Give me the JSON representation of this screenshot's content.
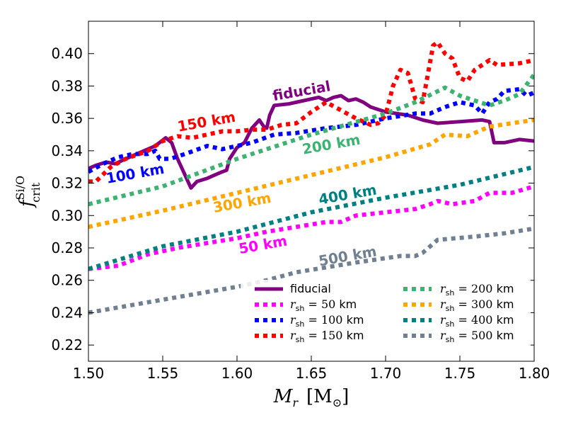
{
  "chart_data": {
    "type": "line",
    "xlabel": "M",
    "xlabel_sub": "r",
    "xlabel_unit": "[M",
    "xlabel_unit_sub": "⊙",
    "xlabel_unit_close": "]",
    "ylabel": "f",
    "ylabel_sup": "Si/O",
    "ylabel_sub": "crit",
    "xlim": [
      1.5,
      1.8
    ],
    "ylim": [
      0.21,
      0.42
    ],
    "xticks": [
      1.5,
      1.55,
      1.6,
      1.65,
      1.7,
      1.75,
      1.8
    ],
    "xtick_labels": [
      "1.50",
      "1.55",
      "1.60",
      "1.65",
      "1.70",
      "1.75",
      "1.80"
    ],
    "yticks": [
      0.22,
      0.24,
      0.26,
      0.28,
      0.3,
      0.32,
      0.34,
      0.36,
      0.38,
      0.4
    ],
    "ytick_labels": [
      "0.22",
      "0.24",
      "0.26",
      "0.28",
      "0.30",
      "0.32",
      "0.34",
      "0.36",
      "0.38",
      "0.40"
    ],
    "series": [
      {
        "name": "fiducial",
        "label": "fiducial",
        "color": "#800080",
        "style": "solid",
        "points": [
          [
            1.5,
            0.329
          ],
          [
            1.505,
            0.331
          ],
          [
            1.512,
            0.333
          ],
          [
            1.518,
            0.332
          ],
          [
            1.525,
            0.335
          ],
          [
            1.535,
            0.339
          ],
          [
            1.545,
            0.343
          ],
          [
            1.552,
            0.348
          ],
          [
            1.556,
            0.345
          ],
          [
            1.56,
            0.335
          ],
          [
            1.565,
            0.325
          ],
          [
            1.569,
            0.317
          ],
          [
            1.573,
            0.321
          ],
          [
            1.58,
            0.323
          ],
          [
            1.585,
            0.325
          ],
          [
            1.59,
            0.327
          ],
          [
            1.593,
            0.328
          ],
          [
            1.595,
            0.335
          ],
          [
            1.6,
            0.342
          ],
          [
            1.605,
            0.345
          ],
          [
            1.61,
            0.354
          ],
          [
            1.615,
            0.359
          ],
          [
            1.618,
            0.355
          ],
          [
            1.62,
            0.354
          ],
          [
            1.622,
            0.362
          ],
          [
            1.625,
            0.368
          ],
          [
            1.635,
            0.369
          ],
          [
            1.645,
            0.371
          ],
          [
            1.655,
            0.373
          ],
          [
            1.66,
            0.371
          ],
          [
            1.665,
            0.373
          ],
          [
            1.67,
            0.374
          ],
          [
            1.675,
            0.371
          ],
          [
            1.68,
            0.372
          ],
          [
            1.685,
            0.37
          ],
          [
            1.69,
            0.367
          ],
          [
            1.7,
            0.364
          ],
          [
            1.715,
            0.362
          ],
          [
            1.725,
            0.359
          ],
          [
            1.735,
            0.357
          ],
          [
            1.75,
            0.358
          ],
          [
            1.765,
            0.359
          ],
          [
            1.77,
            0.358
          ],
          [
            1.773,
            0.345
          ],
          [
            1.78,
            0.345
          ],
          [
            1.79,
            0.347
          ],
          [
            1.8,
            0.346
          ]
        ]
      },
      {
        "name": "rsh-50",
        "label": "r_sh = 50 km",
        "color": "#ff00ff",
        "style": "dotted",
        "points": [
          [
            1.5,
            0.267
          ],
          [
            1.52,
            0.269
          ],
          [
            1.54,
            0.276
          ],
          [
            1.56,
            0.28
          ],
          [
            1.58,
            0.283
          ],
          [
            1.6,
            0.286
          ],
          [
            1.62,
            0.29
          ],
          [
            1.64,
            0.293
          ],
          [
            1.66,
            0.296
          ],
          [
            1.67,
            0.296
          ],
          [
            1.68,
            0.3
          ],
          [
            1.7,
            0.302
          ],
          [
            1.72,
            0.304
          ],
          [
            1.73,
            0.307
          ],
          [
            1.735,
            0.309
          ],
          [
            1.745,
            0.307
          ],
          [
            1.76,
            0.309
          ],
          [
            1.77,
            0.314
          ],
          [
            1.775,
            0.314
          ],
          [
            1.785,
            0.314
          ],
          [
            1.8,
            0.318
          ]
        ]
      },
      {
        "name": "rsh-100",
        "label": "r_sh = 100 km",
        "color": "#0000ff",
        "style": "dotted",
        "points": [
          [
            1.5,
            0.327
          ],
          [
            1.51,
            0.332
          ],
          [
            1.52,
            0.336
          ],
          [
            1.53,
            0.338
          ],
          [
            1.54,
            0.338
          ],
          [
            1.545,
            0.34
          ],
          [
            1.548,
            0.335
          ],
          [
            1.555,
            0.335
          ],
          [
            1.565,
            0.338
          ],
          [
            1.58,
            0.343
          ],
          [
            1.59,
            0.341
          ],
          [
            1.6,
            0.343
          ],
          [
            1.61,
            0.345
          ],
          [
            1.625,
            0.35
          ],
          [
            1.64,
            0.351
          ],
          [
            1.66,
            0.354
          ],
          [
            1.68,
            0.356
          ],
          [
            1.7,
            0.36
          ],
          [
            1.72,
            0.363
          ],
          [
            1.73,
            0.363
          ],
          [
            1.74,
            0.367
          ],
          [
            1.75,
            0.37
          ],
          [
            1.76,
            0.368
          ],
          [
            1.765,
            0.363
          ],
          [
            1.77,
            0.37
          ],
          [
            1.775,
            0.372
          ],
          [
            1.78,
            0.377
          ],
          [
            1.79,
            0.378
          ],
          [
            1.795,
            0.374
          ],
          [
            1.8,
            0.376
          ]
        ]
      },
      {
        "name": "rsh-150",
        "label": "r_sh = 150 km",
        "color": "#ff0000",
        "style": "dotted",
        "points": [
          [
            1.5,
            0.321
          ],
          [
            1.505,
            0.321
          ],
          [
            1.515,
            0.33
          ],
          [
            1.525,
            0.335
          ],
          [
            1.54,
            0.34
          ],
          [
            1.55,
            0.346
          ],
          [
            1.56,
            0.349
          ],
          [
            1.57,
            0.348
          ],
          [
            1.58,
            0.35
          ],
          [
            1.59,
            0.352
          ],
          [
            1.6,
            0.352
          ],
          [
            1.61,
            0.353
          ],
          [
            1.62,
            0.353
          ],
          [
            1.63,
            0.356
          ],
          [
            1.64,
            0.357
          ],
          [
            1.65,
            0.364
          ],
          [
            1.66,
            0.37
          ],
          [
            1.67,
            0.365
          ],
          [
            1.68,
            0.36
          ],
          [
            1.69,
            0.356
          ],
          [
            1.695,
            0.357
          ],
          [
            1.7,
            0.362
          ],
          [
            1.705,
            0.38
          ],
          [
            1.71,
            0.39
          ],
          [
            1.715,
            0.388
          ],
          [
            1.72,
            0.372
          ],
          [
            1.725,
            0.37
          ],
          [
            1.728,
            0.385
          ],
          [
            1.732,
            0.405
          ],
          [
            1.735,
            0.407
          ],
          [
            1.74,
            0.4
          ],
          [
            1.745,
            0.397
          ],
          [
            1.75,
            0.385
          ],
          [
            1.755,
            0.383
          ],
          [
            1.76,
            0.39
          ],
          [
            1.765,
            0.393
          ],
          [
            1.77,
            0.396
          ],
          [
            1.775,
            0.393
          ],
          [
            1.79,
            0.394
          ],
          [
            1.8,
            0.396
          ]
        ]
      },
      {
        "name": "rsh-200",
        "label": "r_sh = 200 km",
        "color": "#3cb371",
        "style": "dotted",
        "points": [
          [
            1.5,
            0.307
          ],
          [
            1.55,
            0.318
          ],
          [
            1.6,
            0.335
          ],
          [
            1.65,
            0.35
          ],
          [
            1.7,
            0.363
          ],
          [
            1.72,
            0.37
          ],
          [
            1.74,
            0.379
          ],
          [
            1.75,
            0.374
          ],
          [
            1.76,
            0.371
          ],
          [
            1.77,
            0.368
          ],
          [
            1.78,
            0.371
          ],
          [
            1.79,
            0.375
          ],
          [
            1.8,
            0.387
          ]
        ]
      },
      {
        "name": "rsh-300",
        "label": "r_sh = 300 km",
        "color": "#ffa500",
        "style": "dotted",
        "points": [
          [
            1.5,
            0.293
          ],
          [
            1.55,
            0.303
          ],
          [
            1.6,
            0.314
          ],
          [
            1.65,
            0.325
          ],
          [
            1.7,
            0.336
          ],
          [
            1.73,
            0.344
          ],
          [
            1.74,
            0.35
          ],
          [
            1.755,
            0.349
          ],
          [
            1.77,
            0.355
          ],
          [
            1.8,
            0.359
          ]
        ]
      },
      {
        "name": "rsh-400",
        "label": "r_sh = 400 km",
        "color": "#008080",
        "style": "dotted",
        "points": [
          [
            1.5,
            0.267
          ],
          [
            1.55,
            0.281
          ],
          [
            1.6,
            0.29
          ],
          [
            1.65,
            0.302
          ],
          [
            1.7,
            0.311
          ],
          [
            1.75,
            0.319
          ],
          [
            1.8,
            0.33
          ]
        ]
      },
      {
        "name": "rsh-500",
        "label": "r_sh = 500 km",
        "color": "#708090",
        "style": "dotted",
        "points": [
          [
            1.5,
            0.24
          ],
          [
            1.55,
            0.248
          ],
          [
            1.6,
            0.256
          ],
          [
            1.62,
            0.26
          ],
          [
            1.64,
            0.265
          ],
          [
            1.68,
            0.271
          ],
          [
            1.71,
            0.275
          ],
          [
            1.72,
            0.275
          ],
          [
            1.725,
            0.277
          ],
          [
            1.735,
            0.285
          ],
          [
            1.76,
            0.287
          ],
          [
            1.78,
            0.289
          ],
          [
            1.8,
            0.292
          ]
        ]
      }
    ],
    "inline_labels": [
      {
        "text": "fiducial",
        "color": "#800080",
        "x": 1.644,
        "y": 0.374,
        "rotate": -10
      },
      {
        "text": "150 km",
        "color": "#ff0000",
        "x": 1.58,
        "y": 0.355,
        "rotate": -10
      },
      {
        "text": "100 km",
        "color": "#0000ff",
        "x": 1.532,
        "y": 0.323,
        "rotate": -10
      },
      {
        "text": "200 km",
        "color": "#3cb371",
        "x": 1.664,
        "y": 0.341,
        "rotate": -10
      },
      {
        "text": "300 km",
        "color": "#ffa500",
        "x": 1.604,
        "y": 0.305,
        "rotate": -10
      },
      {
        "text": "400 km",
        "color": "#008080",
        "x": 1.675,
        "y": 0.31,
        "rotate": -10
      },
      {
        "text": "50 km",
        "color": "#ff00ff",
        "x": 1.618,
        "y": 0.279,
        "rotate": -10
      },
      {
        "text": "500 km",
        "color": "#708090",
        "x": 1.675,
        "y": 0.272,
        "rotate": -10
      }
    ],
    "legend": {
      "location": "lower-right",
      "entries": [
        {
          "series": "fiducial",
          "label_math": "",
          "label_text": "fiducial"
        },
        {
          "series": "rsh-50",
          "label_math": "r",
          "label_sub": "sh",
          "label_eq": " = 50",
          "label_unit": " km"
        },
        {
          "series": "rsh-100",
          "label_math": "r",
          "label_sub": "sh",
          "label_eq": " = 100",
          "label_unit": " km"
        },
        {
          "series": "rsh-150",
          "label_math": "r",
          "label_sub": "sh",
          "label_eq": " = 150",
          "label_unit": " km"
        },
        {
          "series": "rsh-200",
          "label_math": "r",
          "label_sub": "sh",
          "label_eq": " = 200",
          "label_unit": " km"
        },
        {
          "series": "rsh-300",
          "label_math": "r",
          "label_sub": "sh",
          "label_eq": " = 300",
          "label_unit": " km"
        },
        {
          "series": "rsh-400",
          "label_math": "r",
          "label_sub": "sh",
          "label_eq": " = 400",
          "label_unit": " km"
        },
        {
          "series": "rsh-500",
          "label_math": "r",
          "label_sub": "sh",
          "label_eq": " = 500",
          "label_unit": " km"
        }
      ]
    }
  }
}
